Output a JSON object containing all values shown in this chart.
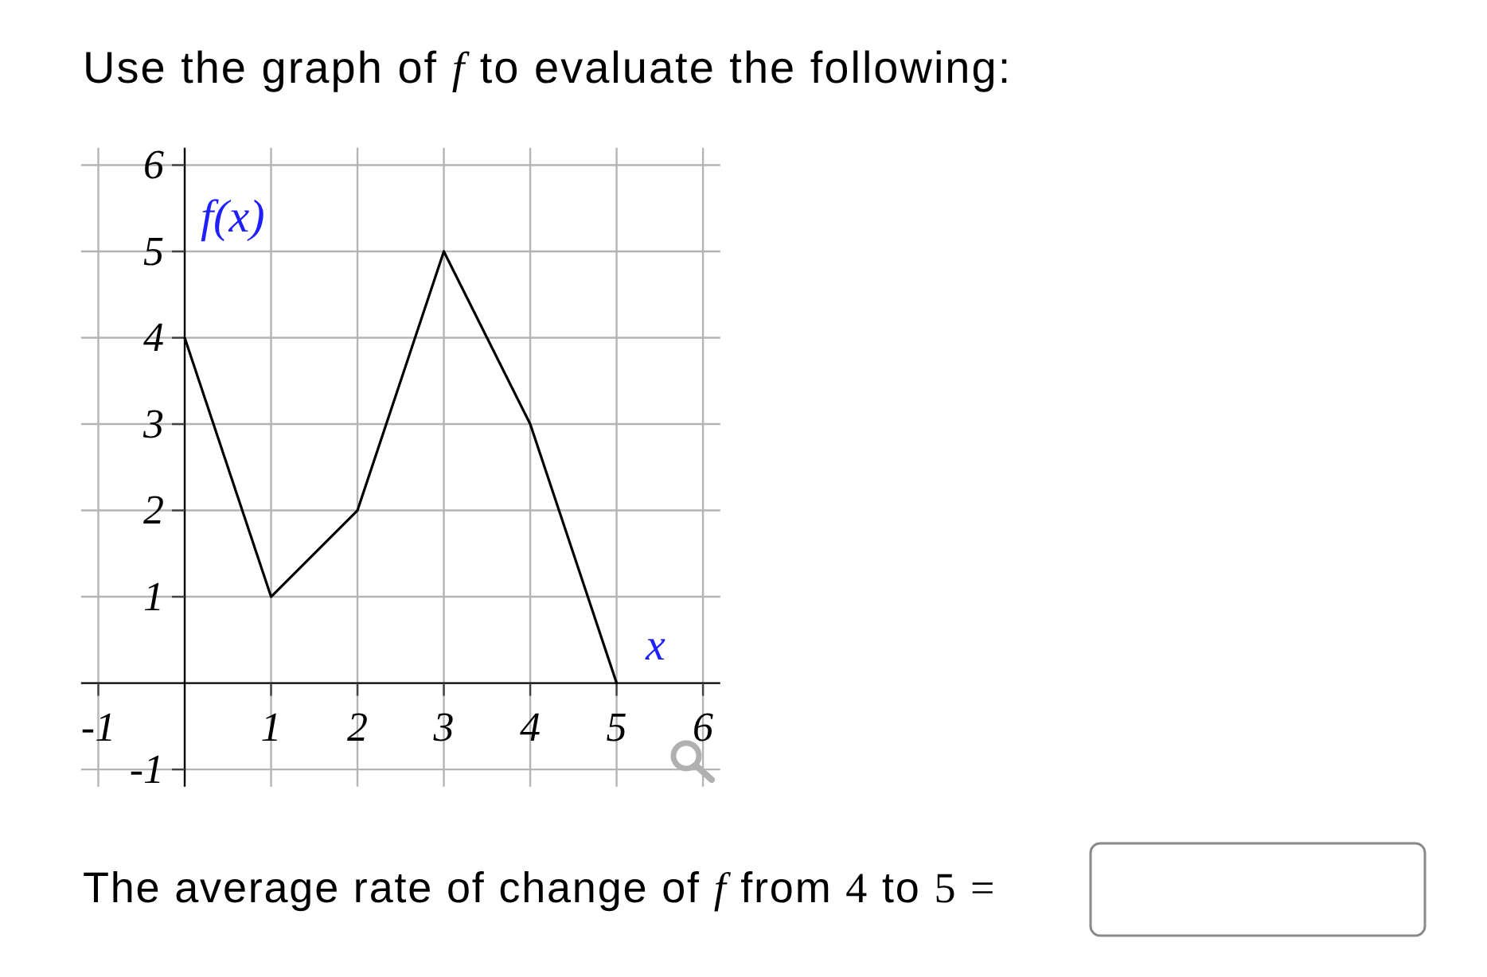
{
  "chart_data": {
    "type": "line",
    "title": "Use the graph of f to evaluate the following:",
    "xlabel": "x",
    "ylabel": "f(x)",
    "x": [
      0,
      1,
      2,
      3,
      4,
      5
    ],
    "values": [
      4,
      1,
      2,
      5,
      3,
      0
    ],
    "color": "#000000",
    "xlim": [
      -1.2,
      6.2
    ],
    "ylim": [
      -1.2,
      6.2
    ],
    "xticks": [
      -1,
      1,
      2,
      3,
      4,
      5,
      6
    ],
    "yticks": [
      -1,
      1,
      2,
      3,
      4,
      5,
      6
    ],
    "grid": true,
    "annotations": [
      "The average rate of change of f from 4 to 5 ="
    ]
  }
}
